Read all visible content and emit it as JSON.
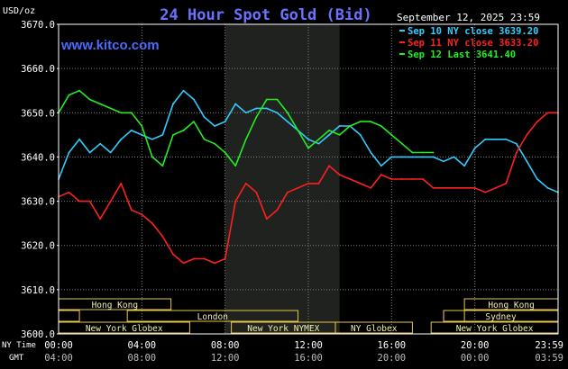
{
  "chart_data": {
    "type": "line",
    "title": "24 Hour Spot Gold (Bid)",
    "watermark": "www.kitco.com",
    "date_label": "September 12, 2025 23:59",
    "y_unit": "USD/oz",
    "ylim": [
      3600,
      3670
    ],
    "y_ticks": [
      "3670.0",
      "3660.0",
      "3650.0",
      "3640.0",
      "3630.0",
      "3620.0",
      "3610.0",
      "3600.0"
    ],
    "x_row1_label": "NY Time",
    "x_row2_label": "GMT",
    "x_ticks_ny": [
      "00:00",
      "04:00",
      "08:00",
      "12:00",
      "16:00",
      "20:00",
      "23:59"
    ],
    "x_ticks_gmt": [
      "04:00",
      "08:00",
      "12:00",
      "16:00",
      "20:00",
      "00:00",
      "03:59"
    ],
    "grid": true,
    "legend_position": "top-right",
    "colors": {
      "title": "#6a72ff",
      "watermark": "#4a6bff",
      "tick": "#ffffff",
      "grid": "#808080",
      "shade": "#1f221f",
      "session_box": "#e6c84a",
      "session_text": "#f0f0b0"
    },
    "sessions": [
      {
        "label": "Hong Kong",
        "start_h": 0,
        "end_h": 5.4
      },
      {
        "label": "",
        "start_h": 0,
        "end_h": 1.0
      },
      {
        "label": "London",
        "start_h": 3.3,
        "end_h": 11.5
      },
      {
        "label": "New York Globex",
        "start_h": 0,
        "end_h": 6.3
      },
      {
        "label": "New York NYMEX",
        "start_h": 8.3,
        "end_h": 13.3
      },
      {
        "label": "NY Globex",
        "start_h": 13.3,
        "end_h": 17.0
      },
      {
        "label": "Hong Kong",
        "start_h": 19.5,
        "end_h": 24.0
      },
      {
        "label": "",
        "start_h": 18.5,
        "end_h": 19.5
      },
      {
        "label": "Sydney",
        "start_h": 18.5,
        "end_h": 24.0
      },
      {
        "label": "New York Globex",
        "start_h": 17.9,
        "end_h": 24.0
      }
    ],
    "series": [
      {
        "name": "Sep 10 NY close 3639.20",
        "color": "#33ccff",
        "x": [
          0,
          0.5,
          1,
          1.5,
          2,
          2.5,
          3,
          3.5,
          4,
          4.5,
          5,
          5.5,
          6,
          6.5,
          7,
          7.5,
          8,
          8.5,
          9,
          9.5,
          10,
          10.5,
          11,
          11.5,
          12,
          12.5,
          13,
          13.5,
          14,
          14.5,
          15,
          15.5,
          16,
          16.5,
          17,
          17.5,
          18,
          18.5,
          19,
          19.5,
          20,
          20.5,
          21,
          21.5,
          22,
          22.5,
          23,
          23.5,
          24
        ],
        "values": [
          3635,
          3641,
          3644,
          3641,
          3643,
          3641,
          3644,
          3646,
          3645,
          3644,
          3645,
          3652,
          3655,
          3653,
          3649,
          3647,
          3648,
          3652,
          3650,
          3651,
          3651,
          3650,
          3648,
          3646,
          3644,
          3643,
          3645,
          3647,
          3647,
          3645,
          3641,
          3638,
          3640,
          3640,
          3640,
          3640,
          3640,
          3639,
          3640,
          3638,
          3642,
          3644,
          3644,
          3644,
          3643,
          3639,
          3635,
          3633,
          3632
        ]
      },
      {
        "name": "Sep 11 NY close 3633.20",
        "color": "#ff2020",
        "x": [
          0,
          0.5,
          1,
          1.5,
          2,
          2.5,
          3,
          3.5,
          4,
          4.5,
          5,
          5.5,
          6,
          6.5,
          7,
          7.5,
          8,
          8.5,
          9,
          9.5,
          10,
          10.5,
          11,
          11.5,
          12,
          12.5,
          13,
          13.5,
          14,
          14.5,
          15,
          15.5,
          16,
          16.5,
          17,
          17.5,
          18,
          18.5,
          19,
          19.5,
          20,
          20.5,
          21,
          21.5,
          22,
          22.5,
          23,
          23.5,
          24
        ],
        "values": [
          3631,
          3632,
          3630,
          3630,
          3626,
          3630,
          3634,
          3628,
          3627,
          3625,
          3622,
          3618,
          3616,
          3617,
          3617,
          3616,
          3617,
          3630,
          3634,
          3632,
          3626,
          3628,
          3632,
          3633,
          3634,
          3634,
          3638,
          3636,
          3635,
          3634,
          3633,
          3636,
          3635,
          3635,
          3635,
          3635,
          3633,
          3633,
          3633,
          3633,
          3633,
          3632,
          3633,
          3634,
          3641,
          3645,
          3648,
          3650,
          3650
        ]
      },
      {
        "name": "Sep 12 Last 3641.40",
        "color": "#22ee22",
        "x": [
          0,
          0.5,
          1,
          1.5,
          2,
          2.5,
          3,
          3.5,
          4,
          4.5,
          5,
          5.5,
          6,
          6.5,
          7,
          7.5,
          8,
          8.5,
          9,
          9.5,
          10,
          10.5,
          11,
          11.5,
          12,
          12.5,
          13,
          13.5,
          14,
          14.5,
          15,
          15.5,
          16,
          16.5,
          17,
          17.5,
          18
        ],
        "values": [
          3650,
          3654,
          3655,
          3653,
          3652,
          3651,
          3650,
          3650,
          3647,
          3640,
          3638,
          3645,
          3646,
          3648,
          3644,
          3643,
          3641,
          3638,
          3644,
          3649,
          3653,
          3653,
          3650,
          3646,
          3642,
          3644,
          3646,
          3645,
          3647,
          3648,
          3648,
          3647,
          3645,
          3643,
          3641,
          3641,
          3641
        ]
      }
    ]
  }
}
